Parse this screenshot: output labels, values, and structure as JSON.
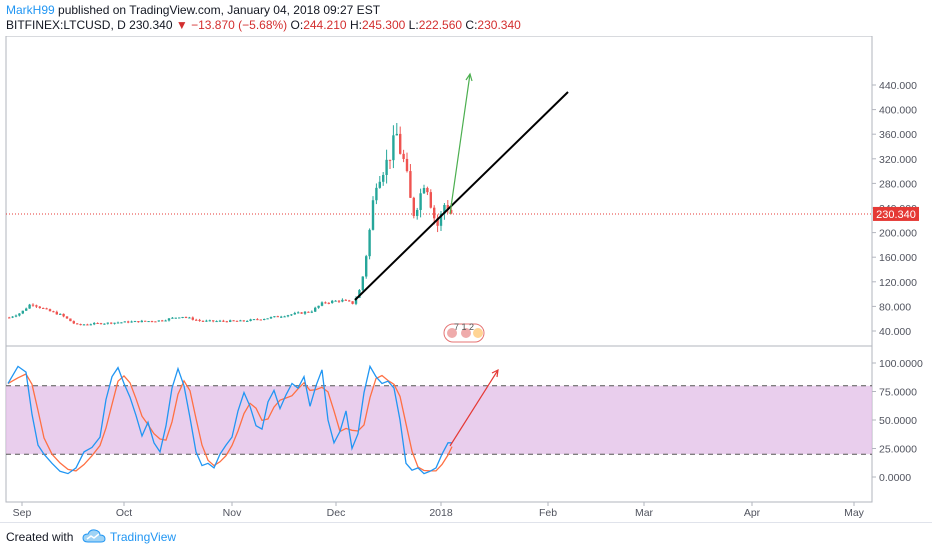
{
  "header": {
    "author": "MarkH99",
    "published_text": "published on TradingView.com, January 04, 2018 09:27 EST",
    "symbol": "BITFINEX:LTCUSD, D",
    "price": "230.340",
    "change_arrow": "▼",
    "change": "−13.870 (−5.68%)",
    "o_label": "O:",
    "o_value": "244.210",
    "h_label": "H:",
    "h_value": "245.300",
    "l_label": "L:",
    "l_value": "222.560",
    "c_label": "C:",
    "c_value": "230.340"
  },
  "price_axis": {
    "ticks": [
      "440.000",
      "400.000",
      "360.000",
      "320.000",
      "280.000",
      "240.000",
      "200.000",
      "160.000",
      "120.000",
      "80.000",
      "40.000"
    ],
    "current_price_label": "230.340",
    "current_price": 230.34
  },
  "oscillator_axis": {
    "ticks": [
      "100.0000",
      "75.0000",
      "50.0000",
      "25.0000",
      "0.0000"
    ],
    "upper_band": 80,
    "lower_band": 20
  },
  "time_axis": {
    "labels": [
      "Sep",
      "Oct",
      "Nov",
      "Dec",
      "2018",
      "Feb",
      "Mar",
      "Apr",
      "May"
    ]
  },
  "colors": {
    "bull": "#26a69a",
    "bear": "#ef5350",
    "band_fill": "#e1bee7",
    "stoch_k": "#2196f3",
    "stoch_d": "#ff7043",
    "trendline": "#000000",
    "green_arrow": "#4caf50",
    "red_arrow": "#e53935",
    "price_line": "#e53935"
  },
  "footer": {
    "created_with": "Created with",
    "brand": "TradingView",
    "logo_icon": "tradingview-cloud-icon"
  },
  "events_marker": {
    "icon": "flag-events-icon",
    "text": "7 1 2"
  }
}
